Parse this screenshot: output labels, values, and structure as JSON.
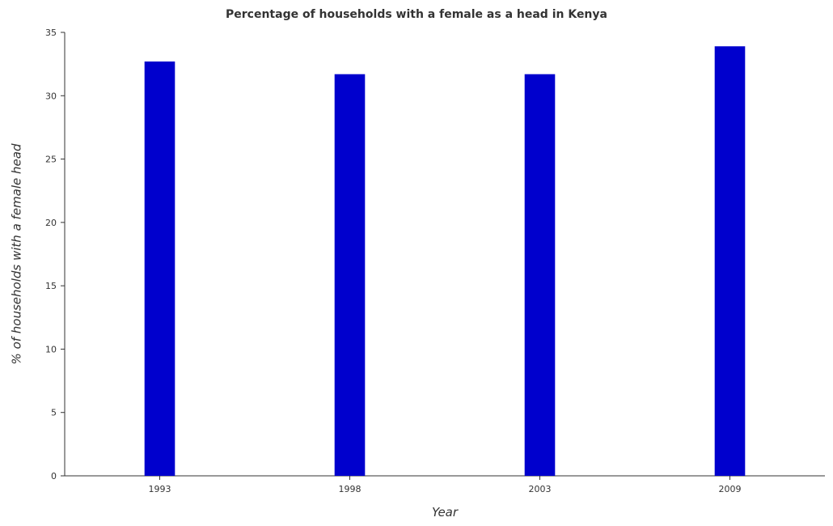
{
  "chart_data": {
    "type": "bar",
    "title": "Percentage of households with a female as a head in Kenya",
    "xlabel": "Year",
    "ylabel": "% of households with a female head",
    "categories": [
      "1993",
      "1998",
      "2003",
      "2009"
    ],
    "values": [
      32.7,
      31.7,
      31.7,
      33.9
    ],
    "ylim": [
      0,
      35
    ],
    "yticks": [
      0,
      5,
      10,
      15,
      20,
      25,
      30,
      35
    ],
    "bar_color": "#0000cd",
    "grid": false
  }
}
